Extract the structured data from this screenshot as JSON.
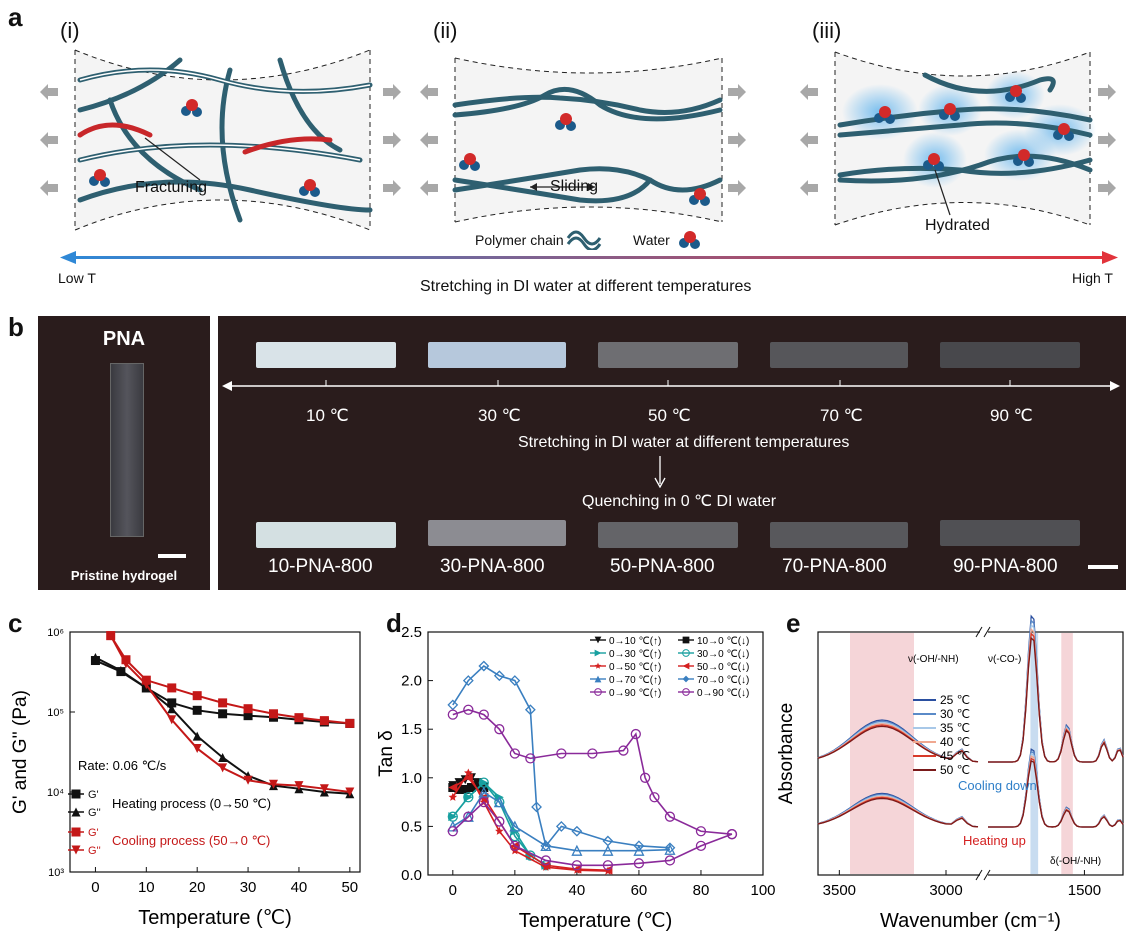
{
  "panel_a": {
    "label": "a",
    "sub_labels": [
      "(i)",
      "(ii)",
      "(iii)"
    ],
    "annotations": {
      "fracturing": "Fracturing",
      "sliding": "Sliding",
      "hydrated": "Hydrated"
    },
    "legend": {
      "polymer": "Polymer chain",
      "water": "Water"
    },
    "gradient": {
      "left": "Low T",
      "right": "High T",
      "caption": "Stretching in DI water at different temperatures",
      "cold": "#2f88d6",
      "hot": "#e2333b"
    }
  },
  "panel_b": {
    "label": "b",
    "pna_title": "PNA",
    "pristine": "Pristine hydrogel",
    "temps": [
      "10 ℃",
      "30 ℃",
      "50 ℃",
      "70 ℃",
      "90 ℃"
    ],
    "stretch_caption": "Stretching in DI water at different temperatures",
    "quench_caption": "Quenching in 0 ℃ DI water",
    "samples": [
      "10-PNA-800",
      "30-PNA-800",
      "50-PNA-800",
      "70-PNA-800",
      "90-PNA-800"
    ]
  },
  "panel_c": {
    "label": "c"
  },
  "panel_d": {
    "label": "d"
  },
  "panel_e": {
    "label": "e"
  },
  "chart_data": [
    {
      "type": "line",
      "panel": "c",
      "xlabel": "Temperature (℃)",
      "ylabel": "G' and G'' (Pa)",
      "xlim": [
        -5,
        52
      ],
      "ylim": [
        1000,
        1000000
      ],
      "log_y": true,
      "xticks": [
        "0",
        "10",
        "20",
        "30",
        "40",
        "50"
      ],
      "yticks": [
        "10³",
        "10⁴",
        "10⁵",
        "10⁶"
      ],
      "annotation": "Rate: 0.06 ℃/s",
      "legend_labels": {
        "g1": "G'",
        "g2": "G''",
        "heat": "Heating process (0→50 ℃)",
        "cool": "Cooling process (50→0 ℃)"
      },
      "series": [
        {
          "name": "G'",
          "group": "heating",
          "color": "#111111",
          "marker": "square",
          "x": [
            0,
            5,
            10,
            15,
            20,
            25,
            30,
            35,
            40,
            45,
            50
          ],
          "y": [
            440000,
            320000,
            200000,
            130000,
            105000,
            95000,
            90000,
            86000,
            80000,
            75000,
            72000
          ]
        },
        {
          "name": "G''",
          "group": "heating",
          "color": "#111111",
          "marker": "triangle",
          "x": [
            0,
            5,
            10,
            15,
            20,
            25,
            30,
            35,
            40,
            45,
            50
          ],
          "y": [
            480000,
            330000,
            200000,
            110000,
            50000,
            27000,
            16000,
            12000,
            11000,
            10000,
            9500
          ]
        },
        {
          "name": "G'",
          "group": "cooling",
          "color": "#c41818",
          "marker": "square",
          "x": [
            3,
            6,
            10,
            15,
            20,
            25,
            30,
            35,
            40,
            45,
            50
          ],
          "y": [
            900000,
            450000,
            250000,
            200000,
            160000,
            130000,
            110000,
            95000,
            85000,
            78000,
            72000
          ]
        },
        {
          "name": "G''",
          "group": "cooling",
          "color": "#c41818",
          "marker": "triangle-down",
          "x": [
            3,
            6,
            10,
            15,
            20,
            25,
            30,
            35,
            40,
            45,
            50
          ],
          "y": [
            900000,
            400000,
            220000,
            80000,
            35000,
            20000,
            14000,
            12500,
            12000,
            11000,
            10000
          ]
        }
      ]
    },
    {
      "type": "line",
      "panel": "d",
      "xlabel": "Temperature (℃)",
      "ylabel": "Tan δ",
      "xlim": [
        -8,
        100
      ],
      "ylim": [
        0,
        2.5
      ],
      "xticks": [
        "0",
        "20",
        "40",
        "60",
        "80",
        "100"
      ],
      "yticks": [
        "0.0",
        "0.5",
        "1.0",
        "1.5",
        "2.0",
        "2.5"
      ],
      "series": [
        {
          "name": "0→10 ℃(↑)",
          "color": "#111111",
          "marker": "triangle-down",
          "x": [
            0,
            2,
            4,
            6,
            8,
            10
          ],
          "y": [
            0.92,
            0.95,
            0.98,
            1.0,
            0.95,
            0.9
          ]
        },
        {
          "name": "10→0 ℃(↓)",
          "color": "#111111",
          "marker": "square",
          "x": [
            10,
            8,
            6,
            4,
            2,
            0
          ],
          "y": [
            0.9,
            0.92,
            0.9,
            0.88,
            0.88,
            0.9
          ]
        },
        {
          "name": "0→30 ℃(↑)",
          "color": "#18a0a0",
          "marker": "triangle-right",
          "x": [
            0,
            5,
            10,
            15,
            20,
            25,
            30
          ],
          "y": [
            0.6,
            0.8,
            0.95,
            0.8,
            0.45,
            0.2,
            0.1
          ]
        },
        {
          "name": "30→0 ℃(↓)",
          "color": "#18a0a0",
          "marker": "circle",
          "x": [
            30,
            25,
            20,
            15,
            10,
            5,
            0
          ],
          "y": [
            0.1,
            0.2,
            0.4,
            0.75,
            0.95,
            0.8,
            0.6
          ]
        },
        {
          "name": "0→50 ℃(↑)",
          "color": "#d42020",
          "marker": "star",
          "x": [
            0,
            5,
            10,
            15,
            20,
            30,
            40,
            50
          ],
          "y": [
            0.8,
            1.05,
            0.75,
            0.45,
            0.25,
            0.08,
            0.05,
            0.04
          ]
        },
        {
          "name": "50→0 ℃(↓)",
          "color": "#d42020",
          "marker": "triangle-left",
          "x": [
            50,
            40,
            30,
            20,
            10,
            5,
            0
          ],
          "y": [
            0.05,
            0.06,
            0.1,
            0.3,
            0.8,
            1.0,
            0.9
          ]
        },
        {
          "name": "0→70 ℃(↑)",
          "color": "#3a7fc0",
          "marker": "triangle",
          "x": [
            0,
            5,
            10,
            15,
            20,
            30,
            40,
            50,
            60,
            70
          ],
          "y": [
            0.5,
            0.6,
            0.85,
            0.75,
            0.5,
            0.3,
            0.25,
            0.25,
            0.25,
            0.26
          ]
        },
        {
          "name": "70→0 ℃(↓)",
          "color": "#3a7fc0",
          "marker": "diamond",
          "x": [
            70,
            60,
            50,
            40,
            35,
            30,
            27,
            25,
            20,
            15,
            10,
            5,
            0
          ],
          "y": [
            0.28,
            0.3,
            0.35,
            0.45,
            0.5,
            0.3,
            0.7,
            1.7,
            2.0,
            2.05,
            2.15,
            2.0,
            1.75
          ]
        },
        {
          "name": "0→90 ℃(↑)",
          "color": "#8a2a9a",
          "marker": "circle",
          "x": [
            0,
            5,
            10,
            15,
            20,
            30,
            40,
            50,
            60,
            70,
            80,
            90
          ],
          "y": [
            0.45,
            0.6,
            0.75,
            0.55,
            0.3,
            0.15,
            0.1,
            0.1,
            0.12,
            0.15,
            0.3,
            0.42
          ]
        },
        {
          "name": "0→90 ℃(↓)",
          "color": "#8a2a9a",
          "marker": "circle",
          "x": [
            90,
            80,
            70,
            65,
            62,
            59,
            55,
            45,
            35,
            25,
            20,
            15,
            10,
            5,
            0
          ],
          "y": [
            0.42,
            0.45,
            0.6,
            0.8,
            1.0,
            1.45,
            1.28,
            1.25,
            1.25,
            1.2,
            1.25,
            1.5,
            1.65,
            1.7,
            1.65
          ]
        }
      ]
    },
    {
      "type": "line",
      "panel": "e",
      "xlabel": "Wavenumber (cm⁻¹)",
      "ylabel": "Absorbance",
      "xticks": [
        "3500",
        "3000",
        "1500"
      ],
      "annotations": {
        "oh": "ν(-OH/-NH)",
        "co": "ν(-CO-)",
        "delta": "δ(-OH/-NH)",
        "cooling": "Cooling down",
        "heating": "Heating up"
      },
      "series_names": [
        "25 ℃",
        "30 ℃",
        "35 ℃",
        "40 ℃",
        "45 ℃",
        "50 ℃"
      ],
      "series_colors": [
        "#2a4fa0",
        "#5a8ac8",
        "#a8c8e8",
        "#f0a890",
        "#d83a2a",
        "#7a1a1a"
      ],
      "shaded_bands": [
        {
          "from": 3450,
          "to": 3150,
          "color": "#f5d5d8"
        },
        {
          "from": 1640,
          "to": 1620,
          "color": "#c8dcf0"
        },
        {
          "from": 1560,
          "to": 1530,
          "color": "#f5d5d8"
        }
      ]
    }
  ]
}
